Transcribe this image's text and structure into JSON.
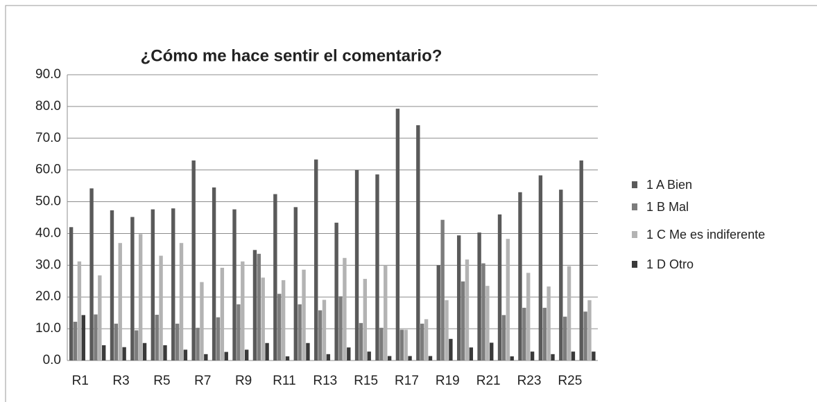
{
  "chart_data": {
    "type": "bar",
    "title": "¿Cómo me hace sentir el comentario?",
    "categories": [
      "R1",
      null,
      "R3",
      null,
      "R5",
      null,
      "R7",
      null,
      "R9",
      null,
      "R11",
      null,
      "R13",
      null,
      "R15",
      null,
      "R17",
      null,
      "R19",
      null,
      "R21",
      null,
      "R23",
      null,
      "R25",
      null
    ],
    "series": [
      {
        "name": "1 A Bien",
        "color": "#5a5a5a",
        "values": [
          42.0,
          54.2,
          47.3,
          45.2,
          47.6,
          47.9,
          63.0,
          54.5,
          47.6,
          34.8,
          52.4,
          48.3,
          63.3,
          43.4,
          60.0,
          58.6,
          79.3,
          74.1,
          30.0,
          39.4,
          40.3,
          46.0,
          53.0,
          58.3,
          53.8,
          63.0
        ]
      },
      {
        "name": "1 B Mal",
        "color": "#7c7c7c",
        "values": [
          12.2,
          14.5,
          11.6,
          9.5,
          14.4,
          11.6,
          10.3,
          13.6,
          17.7,
          33.6,
          21.0,
          17.7,
          15.8,
          20.2,
          11.8,
          10.3,
          9.7,
          11.6,
          44.3,
          24.9,
          30.6,
          14.3,
          16.6,
          16.6,
          13.8,
          15.4
        ]
      },
      {
        "name": "1 C Me es indiferente",
        "color": "#b3b3b3",
        "values": [
          31.2,
          26.8,
          37.0,
          39.8,
          33.0,
          37.0,
          24.7,
          29.2,
          31.2,
          26.1,
          25.3,
          28.6,
          19.1,
          32.3,
          25.7,
          30.0,
          9.7,
          13.0,
          19.0,
          31.8,
          23.5,
          38.3,
          27.6,
          23.3,
          29.7,
          19.0
        ]
      },
      {
        "name": "1 D Otro",
        "color": "#3a3a3a",
        "values": [
          14.3,
          4.8,
          4.2,
          5.5,
          4.8,
          3.4,
          2.0,
          2.7,
          3.4,
          5.5,
          1.3,
          5.5,
          2.0,
          4.1,
          2.8,
          1.4,
          1.4,
          1.4,
          6.8,
          4.1,
          5.6,
          1.3,
          2.8,
          2.0,
          2.8,
          2.8
        ]
      }
    ],
    "ylim": [
      0,
      90
    ],
    "yticks": [
      {
        "value": 0,
        "label": "0.0"
      },
      {
        "value": 10,
        "label": "10.0"
      },
      {
        "value": 20,
        "label": "20.0"
      },
      {
        "value": 30,
        "label": "30.0"
      },
      {
        "value": 40,
        "label": "40.0"
      },
      {
        "value": 50,
        "label": "50.0"
      },
      {
        "value": 60,
        "label": "60.0"
      },
      {
        "value": 70,
        "label": "70.0"
      },
      {
        "value": 80,
        "label": "80.0"
      },
      {
        "value": 90,
        "label": "90.0"
      }
    ],
    "grid": true,
    "legend": "right"
  }
}
